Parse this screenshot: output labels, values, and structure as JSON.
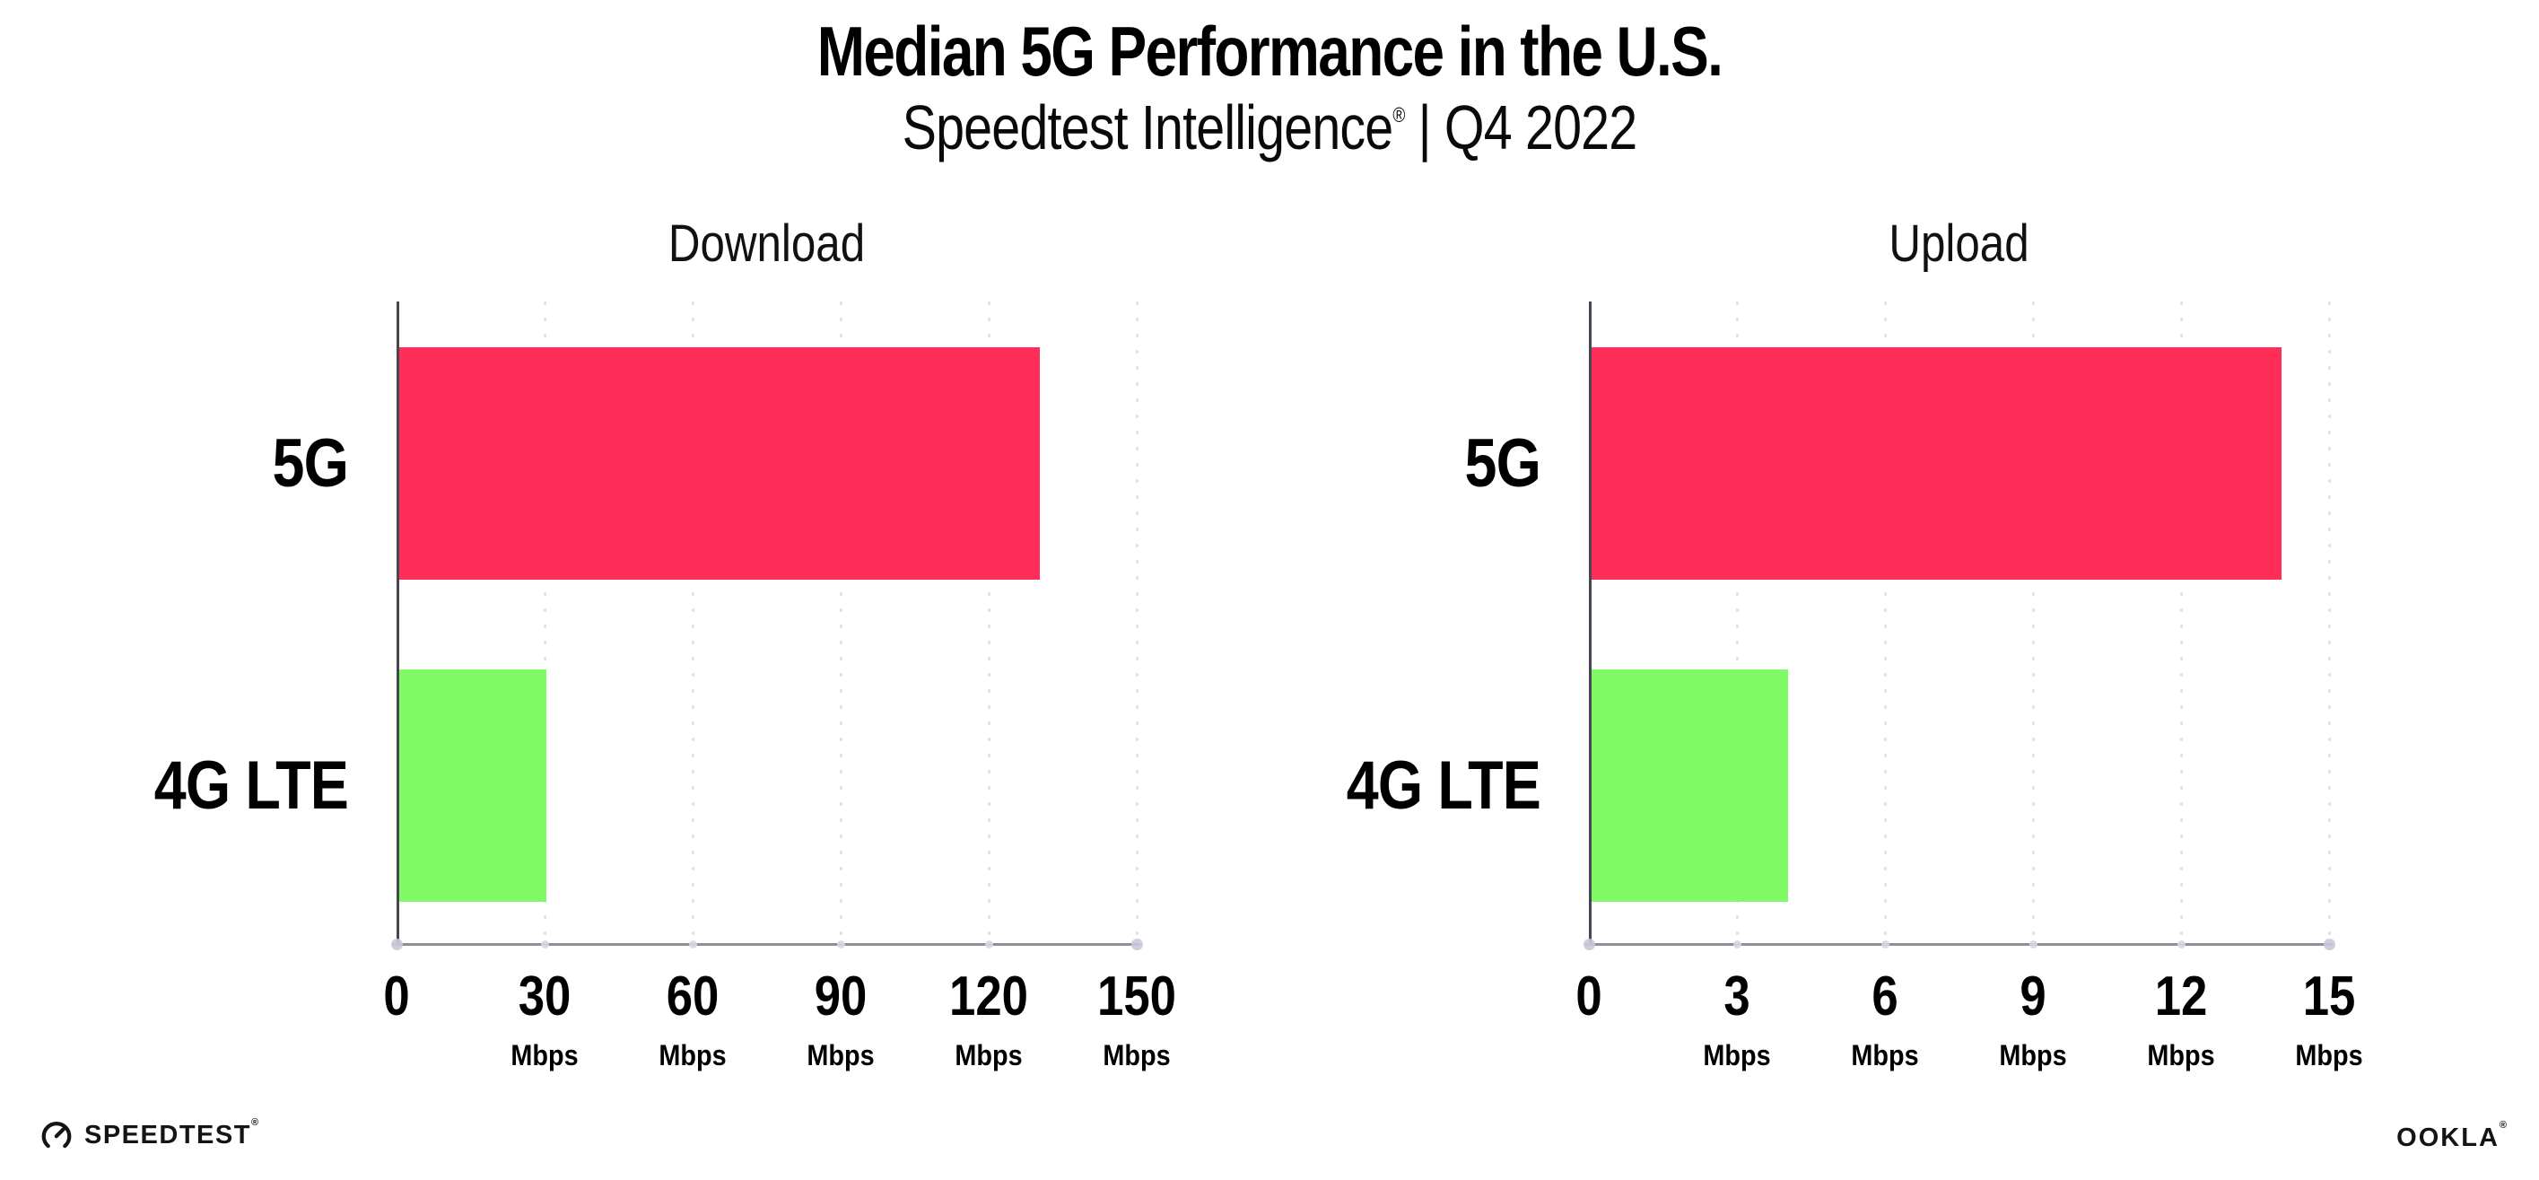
{
  "header": {
    "title": "Median 5G Performance in the U.S.",
    "subtitle_brand": "Speedtest Intelligence",
    "subtitle_reg": "®",
    "subtitle_rest": " | Q4 2022"
  },
  "footer": {
    "speedtest": "SPEEDTEST",
    "speedtest_reg": "®",
    "ookla": "OOKLA",
    "ookla_reg": "®"
  },
  "colors": {
    "bar_5g": "#FF2E58",
    "bar_4g_lte": "#80FB66",
    "x_axis_line": "#8E8E96",
    "y_axis_line": "#474751",
    "grid_dots": "#E3E3EE",
    "tick_dots": "#D7D7E4",
    "end_dots": "#C9C9DA",
    "text": "#000000"
  },
  "chart_data": [
    {
      "type": "bar",
      "orientation": "horizontal",
      "title": "Download",
      "categories": [
        "5G",
        "4G LTE"
      ],
      "values": [
        130,
        30
      ],
      "unit": "Mbps",
      "xlim": [
        0,
        150
      ],
      "xticks": [
        0,
        30,
        60,
        90,
        120,
        150
      ],
      "grid": "dotted-vertical",
      "legend": "none",
      "bar_colors": [
        "#FF2E58",
        "#80FB66"
      ]
    },
    {
      "type": "bar",
      "orientation": "horizontal",
      "title": "Upload",
      "categories": [
        "5G",
        "4G LTE"
      ],
      "values": [
        14,
        4
      ],
      "unit": "Mbps",
      "xlim": [
        0,
        15
      ],
      "xticks": [
        0,
        3,
        6,
        9,
        12,
        15
      ],
      "grid": "dotted-vertical",
      "legend": "none",
      "bar_colors": [
        "#FF2E58",
        "#80FB66"
      ]
    }
  ]
}
